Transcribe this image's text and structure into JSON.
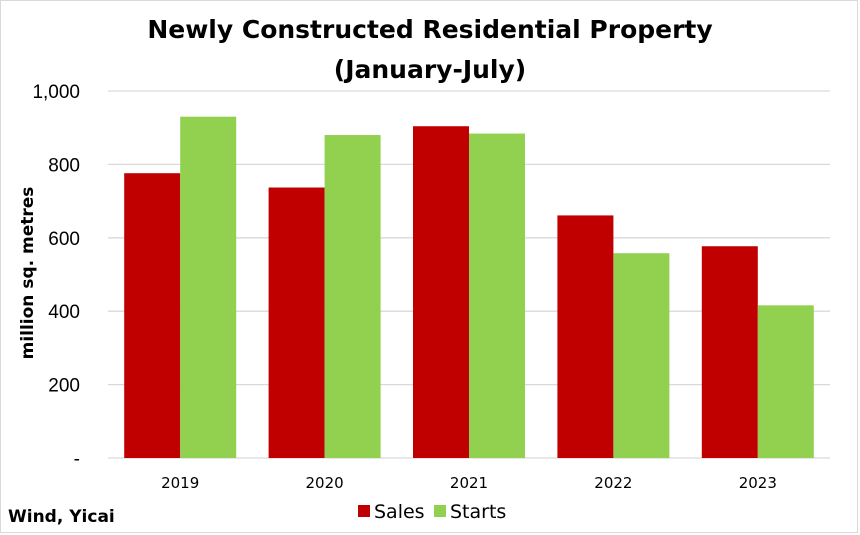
{
  "chart_data": {
    "type": "bar",
    "title_lines": [
      "Newly Constructed Residential Property",
      "(January-July)"
    ],
    "ylabel": "million sq. metres",
    "xlabel": "",
    "categories": [
      "2019",
      "2020",
      "2021",
      "2022",
      "2023"
    ],
    "series": [
      {
        "name": "Sales",
        "color": "#c00000",
        "values": [
          776,
          737,
          904,
          661,
          577
        ]
      },
      {
        "name": "Starts",
        "color": "#92d050",
        "values": [
          930,
          880,
          884,
          558,
          416
        ]
      }
    ],
    "ylim": [
      0,
      1000
    ],
    "yticks": [
      {
        "value": 0,
        "label": "-"
      },
      {
        "value": 200,
        "label": "200"
      },
      {
        "value": 400,
        "label": "400"
      },
      {
        "value": 600,
        "label": "600"
      },
      {
        "value": 800,
        "label": "800"
      },
      {
        "value": 1000,
        "label": "1,000"
      }
    ],
    "grid": true,
    "legend_position": "bottom",
    "source": "Wind, Yicai",
    "gridline_color": "#d9d9d9"
  }
}
